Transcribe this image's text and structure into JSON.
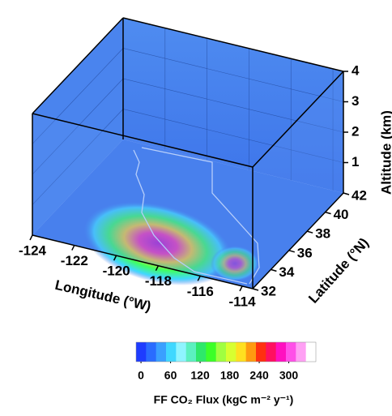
{
  "chart_data": {
    "type": "volume3d",
    "x_label": "Longitude (°W)",
    "y_label": "Latitude (°N)",
    "z_label": "Altitude (km)",
    "xlim": [
      -124,
      -113.5
    ],
    "xticks": [
      -124,
      -122,
      -120,
      -118,
      -116,
      -114
    ],
    "ylim": [
      32,
      42
    ],
    "yticks": [
      32,
      34,
      36,
      38,
      40,
      42
    ],
    "zlim": [
      0,
      4
    ],
    "zticks": [
      1,
      2,
      3,
      4
    ],
    "colorbar": {
      "label": "FF CO₂ Flux (kgC m⁻² y⁻¹)",
      "lim": [
        -10,
        355
      ],
      "ticks": [
        0,
        60,
        120,
        180,
        240,
        300
      ],
      "colors": [
        "#1e3cff",
        "#2a6cff",
        "#3aa0ff",
        "#40d8ff",
        "#8ff4ff",
        "#5cf0c0",
        "#2ee86a",
        "#3cff28",
        "#a0ff40",
        "#d8ff30",
        "#ffe020",
        "#ff9a10",
        "#ff3010",
        "#ff1060",
        "#ff10c0",
        "#ff50e8",
        "#ffa0f4",
        "#ffffff"
      ]
    }
  }
}
